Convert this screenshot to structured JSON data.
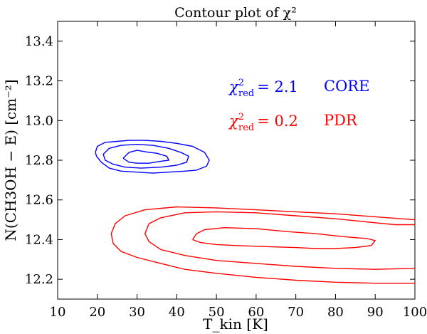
{
  "chart_data": {
    "type": "contour",
    "title": "Contour plot of χ²",
    "xlabel": "T_kin [K]",
    "ylabel": "N(CH3OH − E) [cm⁻²]",
    "xlim": [
      10,
      100
    ],
    "ylim": [
      12.1,
      13.5
    ],
    "xticks": [
      "10",
      "20",
      "30",
      "40",
      "50",
      "60",
      "70",
      "80",
      "90",
      "100"
    ],
    "yticks": [
      "12.2",
      "12.4",
      "12.6",
      "12.8",
      "13.0",
      "13.2",
      "13.4"
    ],
    "grid": false,
    "colors": {
      "core": "#0000ff",
      "pdr": "#ff0000",
      "axes": "#000000"
    },
    "annotations": [
      {
        "chi_symbol": "χ",
        "sup": "2",
        "sub": "red",
        "value": "= 2.1",
        "label": "CORE",
        "color": "#0000ff"
      },
      {
        "chi_symbol": "χ",
        "sup": "2",
        "sub": "red",
        "value": "= 0.2",
        "label": "PDR",
        "color": "#ff0000"
      }
    ],
    "series": [
      {
        "name": "CORE",
        "color": "#0000ff",
        "contours": [
          [
            [
              19.5,
              12.84
            ],
            [
              20,
              12.87
            ],
            [
              22,
              12.89
            ],
            [
              25,
              12.895
            ],
            [
              28,
              12.9
            ],
            [
              32,
              12.9
            ],
            [
              36,
              12.895
            ],
            [
              40,
              12.885
            ],
            [
              44,
              12.87
            ],
            [
              47,
              12.84
            ],
            [
              48.2,
              12.8
            ],
            [
              47.5,
              12.77
            ],
            [
              45,
              12.75
            ],
            [
              42,
              12.745
            ],
            [
              38,
              12.74
            ],
            [
              34,
              12.735
            ],
            [
              30,
              12.74
            ],
            [
              26,
              12.745
            ],
            [
              23,
              12.76
            ],
            [
              21,
              12.79
            ],
            [
              19.8,
              12.82
            ],
            [
              19.5,
              12.84
            ]
          ],
          [
            [
              21.5,
              12.83
            ],
            [
              23,
              12.86
            ],
            [
              26,
              12.875
            ],
            [
              30,
              12.88
            ],
            [
              34,
              12.875
            ],
            [
              38,
              12.86
            ],
            [
              41,
              12.84
            ],
            [
              43,
              12.82
            ],
            [
              42.5,
              12.79
            ],
            [
              40,
              12.775
            ],
            [
              36,
              12.765
            ],
            [
              31,
              12.76
            ],
            [
              27,
              12.765
            ],
            [
              24,
              12.78
            ],
            [
              22,
              12.8
            ],
            [
              21.5,
              12.83
            ]
          ],
          [
            [
              26.5,
              12.81
            ],
            [
              28,
              12.84
            ],
            [
              30,
              12.85
            ],
            [
              33,
              12.84
            ],
            [
              35,
              12.835
            ],
            [
              37.5,
              12.82
            ],
            [
              38,
              12.8
            ],
            [
              36,
              12.795
            ],
            [
              33,
              12.785
            ],
            [
              30,
              12.785
            ],
            [
              28,
              12.79
            ],
            [
              26.5,
              12.81
            ]
          ]
        ]
      },
      {
        "name": "PDR",
        "color": "#ff0000",
        "contours": [
          [
            [
              100,
              12.18
            ],
            [
              90,
              12.18
            ],
            [
              80,
              12.185
            ],
            [
              70,
              12.195
            ],
            [
              60,
              12.21
            ],
            [
              50,
              12.23
            ],
            [
              42,
              12.25
            ],
            [
              36,
              12.28
            ],
            [
              30,
              12.31
            ],
            [
              26,
              12.34
            ],
            [
              24,
              12.38
            ],
            [
              23.5,
              12.43
            ],
            [
              24.5,
              12.48
            ],
            [
              27,
              12.52
            ],
            [
              32,
              12.55
            ],
            [
              40,
              12.565
            ],
            [
              50,
              12.56
            ],
            [
              60,
              12.55
            ],
            [
              70,
              12.54
            ],
            [
              80,
              12.53
            ],
            [
              90,
              12.515
            ],
            [
              100,
              12.5
            ]
          ],
          [
            [
              100,
              12.255
            ],
            [
              90,
              12.25
            ],
            [
              80,
              12.255
            ],
            [
              70,
              12.265
            ],
            [
              60,
              12.28
            ],
            [
              50,
              12.295
            ],
            [
              42,
              12.32
            ],
            [
              36,
              12.35
            ],
            [
              33,
              12.39
            ],
            [
              32,
              12.43
            ],
            [
              33,
              12.48
            ],
            [
              36,
              12.51
            ],
            [
              42,
              12.535
            ],
            [
              50,
              12.54
            ],
            [
              60,
              12.535
            ],
            [
              70,
              12.52
            ],
            [
              80,
              12.505
            ],
            [
              90,
              12.485
            ],
            [
              95,
              12.475
            ],
            [
              100,
              12.475
            ]
          ],
          [
            [
              44,
              12.4
            ],
            [
              45,
              12.43
            ],
            [
              47,
              12.45
            ],
            [
              52,
              12.46
            ],
            [
              60,
              12.455
            ],
            [
              68,
              12.44
            ],
            [
              75,
              12.43
            ],
            [
              82,
              12.415
            ],
            [
              88,
              12.405
            ],
            [
              90,
              12.395
            ],
            [
              89,
              12.37
            ],
            [
              85,
              12.36
            ],
            [
              80,
              12.355
            ],
            [
              75,
              12.355
            ],
            [
              70,
              12.36
            ],
            [
              62,
              12.365
            ],
            [
              55,
              12.37
            ],
            [
              50,
              12.375
            ],
            [
              46,
              12.385
            ],
            [
              44,
              12.4
            ]
          ]
        ]
      }
    ]
  }
}
